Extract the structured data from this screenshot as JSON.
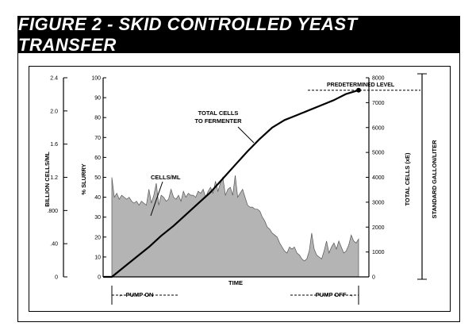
{
  "chart_data": {
    "type": "area",
    "title": "FIGURE 2 - SKID CONTROLLED YEAST TRANSFER",
    "xlabel": "TIME",
    "x_annotations": {
      "start": "PUMP ON",
      "end": "PUMP OFF"
    },
    "axes": {
      "billion_cells": {
        "label": "BILLION CELLS/ML",
        "ticks": [
          "2.4",
          "2.0",
          "1.6",
          "1.2",
          ".800",
          ".40",
          "0"
        ]
      },
      "slurry": {
        "label": "% SLURRY",
        "ticks": [
          "100",
          "90",
          "80",
          "70",
          "60",
          "50",
          "40",
          "30",
          "20",
          "10",
          "0"
        ],
        "ylim": [
          0,
          100
        ]
      },
      "total_cells": {
        "label": "TOTAL CELLS (xE)",
        "ticks": [
          "8000",
          "7000",
          "6000",
          "5000",
          "4000",
          "3000",
          "2000",
          "1000",
          "0"
        ],
        "ylim": [
          0,
          8000
        ]
      },
      "standard_gallon": {
        "label": "STANDARD GALLON/LITER"
      }
    },
    "series": [
      {
        "name": "CELLS/ML",
        "unit_axis": "slurry",
        "x": [
          0,
          1,
          2,
          3,
          4,
          5,
          6,
          7,
          8,
          9,
          10,
          11,
          12,
          13,
          14,
          15,
          16,
          17,
          18,
          19,
          20,
          21,
          22,
          23,
          24,
          25,
          26,
          27,
          28,
          29,
          30,
          31,
          32,
          33,
          34,
          35,
          36,
          37,
          38,
          39,
          40,
          41,
          42,
          43,
          44,
          45,
          46,
          47,
          48,
          49,
          50,
          51,
          52,
          53,
          54,
          55,
          56,
          57,
          58,
          59,
          60,
          61,
          62,
          63,
          64,
          65,
          66,
          67,
          68,
          69,
          70,
          71,
          72,
          73,
          74,
          75,
          76,
          77,
          78,
          79,
          80,
          81,
          82,
          83,
          84,
          85,
          86,
          87,
          88,
          89,
          90,
          91,
          92,
          93,
          94,
          95,
          96,
          97,
          98,
          99,
          100
        ],
        "values": [
          50,
          40,
          42,
          39,
          41,
          40,
          39,
          40,
          38,
          37,
          38,
          36,
          38,
          37,
          36,
          44,
          37,
          41,
          47,
          36,
          41,
          40,
          38,
          39,
          44,
          40,
          39,
          41,
          38,
          43,
          40,
          42,
          41,
          41,
          40,
          43,
          42,
          44,
          40,
          43,
          45,
          42,
          48,
          43,
          47,
          50,
          41,
          44,
          45,
          41,
          51,
          40,
          42,
          44,
          40,
          36,
          35,
          35,
          34,
          34,
          33,
          30,
          28,
          25,
          24,
          22,
          21,
          20,
          17,
          15,
          13,
          12,
          15,
          14,
          15,
          12,
          11,
          9,
          8,
          9,
          13,
          22,
          14,
          11,
          10,
          9,
          13,
          18,
          12,
          15,
          17,
          14,
          18,
          15,
          12,
          13,
          16,
          21,
          18,
          17,
          19
        ]
      },
      {
        "name": "TOTAL CELLS TO FERMENTER",
        "unit_axis": "total_cells",
        "x": [
          0,
          5,
          10,
          15,
          20,
          25,
          30,
          35,
          40,
          45,
          50,
          55,
          60,
          65,
          70,
          75,
          80,
          85,
          90,
          95,
          100
        ],
        "values": [
          0,
          400,
          800,
          1200,
          1650,
          2050,
          2500,
          2950,
          3400,
          3950,
          4500,
          5050,
          5550,
          6000,
          6300,
          6500,
          6700,
          6900,
          7100,
          7350,
          7500
        ]
      }
    ],
    "annotations": {
      "predetermined_level": "PREDETERMINED LEVEL"
    }
  }
}
